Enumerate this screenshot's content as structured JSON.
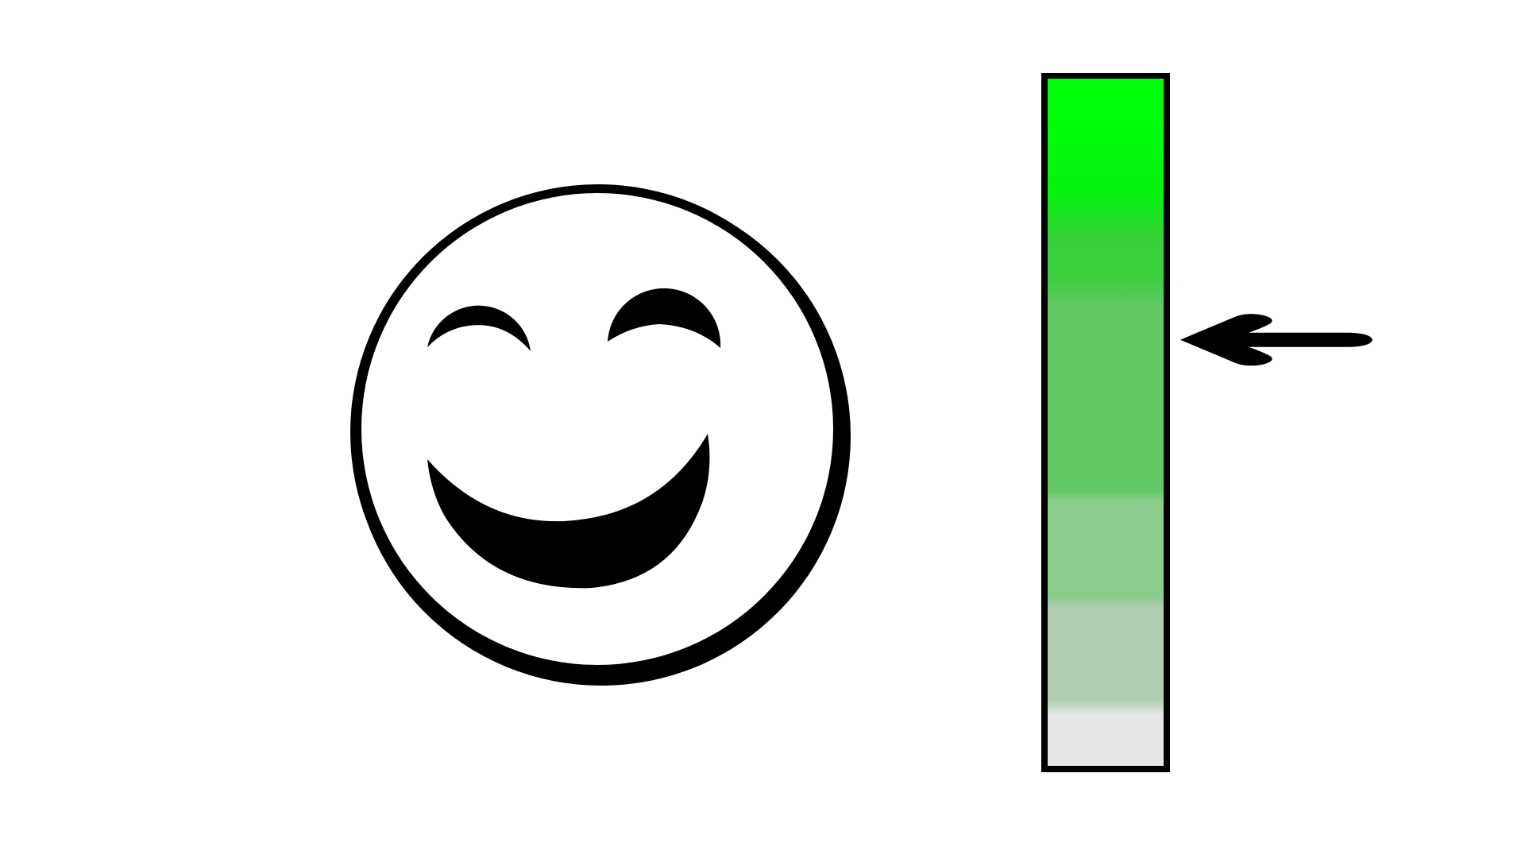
{
  "face": {
    "icon": "happy-face-icon"
  },
  "meter": {
    "icon": "level-meter-bar",
    "level_indicated": 0.62,
    "colors": {
      "frame": "#000000",
      "empty": "#e6e6e6",
      "band_1": "#b1ceb2",
      "band_2": "#8bcd8d",
      "band_3": "#61c864",
      "band_4": "#3ccf3e",
      "band_5": "#07f10f",
      "band_6": "#00ff0b"
    }
  },
  "pointer": {
    "icon": "arrow-left-icon",
    "color": "#000000"
  }
}
